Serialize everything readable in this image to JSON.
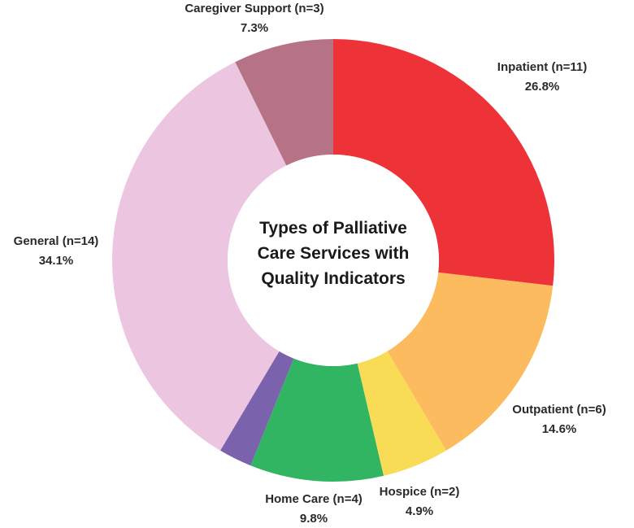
{
  "chart_data": {
    "type": "pie",
    "variant": "donut",
    "title_lines": [
      "Types of Palliative",
      "Care Services with",
      "Quality Indicators"
    ],
    "slices": [
      {
        "name": "Inpatient (n=11)",
        "percent_label": "26.8%",
        "value": 11,
        "color": "#ee3338"
      },
      {
        "name": "Outpatient (n=6)",
        "percent_label": "14.6%",
        "value": 6,
        "color": "#fbbb5e"
      },
      {
        "name": "Hospice (n=2)",
        "percent_label": "4.9%",
        "value": 2,
        "color": "#f9dc55"
      },
      {
        "name": "Home Care (n=4)",
        "percent_label": "9.8%",
        "value": 4,
        "color": "#31b563"
      },
      {
        "name": "",
        "percent_label": "",
        "value": 1,
        "color": "#7b62ad"
      },
      {
        "name": "General (n=14)",
        "percent_label": "34.1%",
        "value": 14,
        "color": "#ecc5e0"
      },
      {
        "name": "Caregiver Support (n=3)",
        "percent_label": "7.3%",
        "value": 3,
        "color": "#b77386"
      }
    ]
  }
}
